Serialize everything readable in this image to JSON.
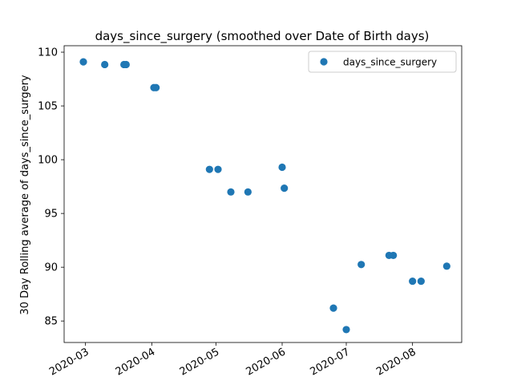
{
  "chart_data": {
    "type": "scatter",
    "title": "days_since_surgery (smoothed over Date of Birth days)",
    "xlabel": "",
    "ylabel": "30 Day Rolling average of days_since_surgery",
    "x_tick_labels": [
      "2020-03",
      "2020-04",
      "2020-05",
      "2020-06",
      "2020-07",
      "2020-08"
    ],
    "x_ticks": [
      "2020-03-01",
      "2020-04-01",
      "2020-05-01",
      "2020-06-01",
      "2020-07-01",
      "2020-08-01"
    ],
    "y_ticks": [
      85,
      90,
      95,
      100,
      105,
      110
    ],
    "xlim": [
      "2020-02-20",
      "2020-08-24"
    ],
    "ylim": [
      83,
      110.6
    ],
    "grid": false,
    "legend": {
      "position": "top-right",
      "entries": [
        "days_since_surgery"
      ]
    },
    "colors": {
      "series": "#1f77b4"
    },
    "series": [
      {
        "name": "days_since_surgery",
        "points": [
          {
            "x": "2020-02-29",
            "y": 109.1
          },
          {
            "x": "2020-03-10",
            "y": 108.85
          },
          {
            "x": "2020-03-19",
            "y": 108.85
          },
          {
            "x": "2020-03-20",
            "y": 108.85
          },
          {
            "x": "2020-04-02",
            "y": 106.7
          },
          {
            "x": "2020-04-03",
            "y": 106.7
          },
          {
            "x": "2020-04-28",
            "y": 99.1
          },
          {
            "x": "2020-05-02",
            "y": 99.1
          },
          {
            "x": "2020-05-08",
            "y": 97.0
          },
          {
            "x": "2020-05-16",
            "y": 97.0
          },
          {
            "x": "2020-06-01",
            "y": 99.3
          },
          {
            "x": "2020-06-02",
            "y": 97.35
          },
          {
            "x": "2020-06-25",
            "y": 86.2
          },
          {
            "x": "2020-07-01",
            "y": 84.2
          },
          {
            "x": "2020-07-08",
            "y": 90.25
          },
          {
            "x": "2020-07-21",
            "y": 91.1
          },
          {
            "x": "2020-07-23",
            "y": 91.1
          },
          {
            "x": "2020-08-01",
            "y": 88.7
          },
          {
            "x": "2020-08-05",
            "y": 88.7
          },
          {
            "x": "2020-08-17",
            "y": 90.1
          }
        ]
      }
    ]
  }
}
